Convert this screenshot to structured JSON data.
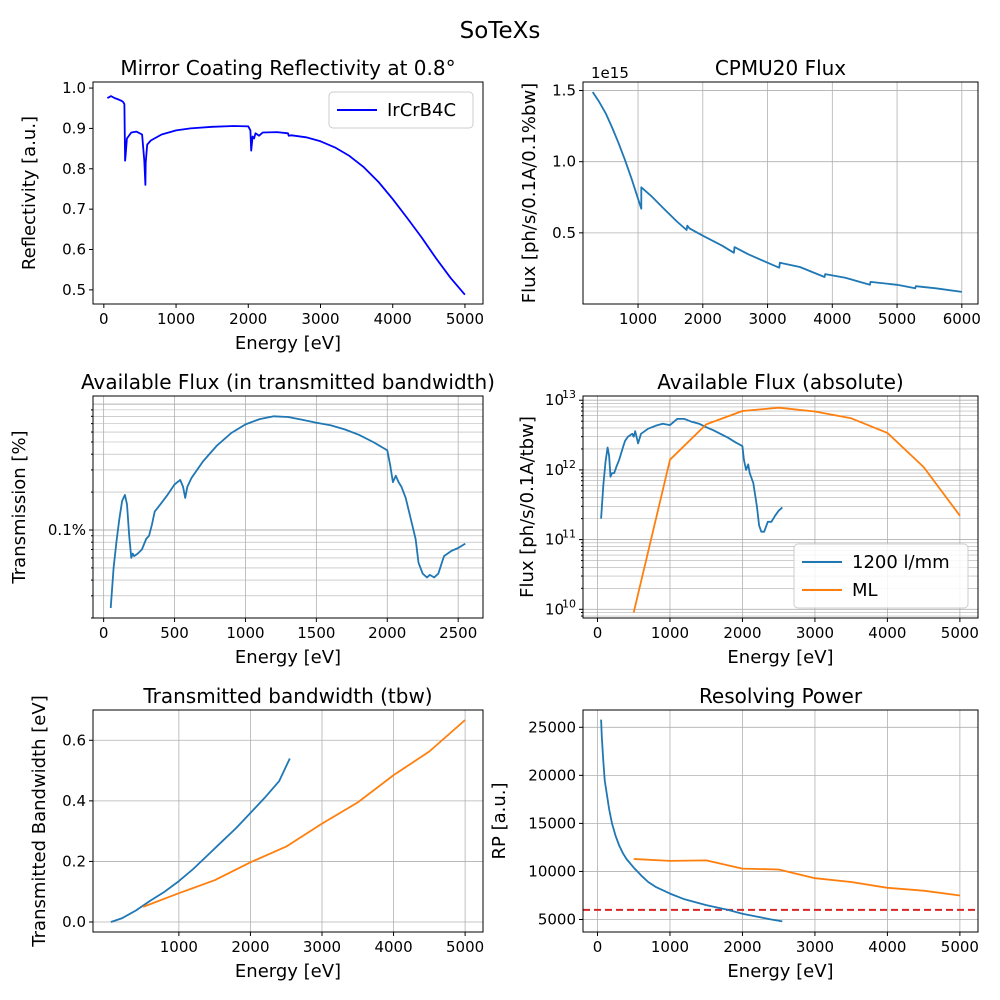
{
  "figure": {
    "suptitle": "SoTeXs"
  },
  "colors": {
    "blue": "#1f77b4",
    "orange": "#ff7f0e",
    "pure_blue": "#0000ff",
    "red": "#d62728",
    "grid": "#b0b0b0"
  },
  "chart_data": [
    {
      "id": "reflectivity",
      "type": "line",
      "title": "Mirror Coating Reflectivity at 0.8°",
      "xlabel": "Energy [eV]",
      "ylabel": "Reflectivity [a.u.]",
      "xlim": [
        -150,
        5250
      ],
      "ylim": [
        0.465,
        1.015
      ],
      "xticks": [
        0,
        1000,
        2000,
        3000,
        4000,
        5000
      ],
      "yticks": [
        0.5,
        0.6,
        0.7,
        0.8,
        0.9,
        1.0
      ],
      "ytick_labels": [
        "0.5",
        "0.6",
        "0.7",
        "0.8",
        "0.9",
        "1.0"
      ],
      "grid": false,
      "legend": {
        "position": "top-right",
        "entries": [
          "IrCrB4C"
        ]
      },
      "series": [
        {
          "name": "IrCrB4C",
          "color": "pure_blue",
          "x": [
            50,
            100,
            150,
            200,
            250,
            270,
            285,
            295,
            300,
            320,
            380,
            450,
            530,
            560,
            575,
            580,
            600,
            650,
            800,
            1000,
            1200,
            1500,
            1800,
            2000,
            2030,
            2040,
            2060,
            2080,
            2100,
            2150,
            2200,
            2400,
            2550,
            2560,
            2600,
            2800,
            3000,
            3200,
            3400,
            3600,
            3800,
            4000,
            4200,
            4400,
            4600,
            4800,
            5000
          ],
          "y": [
            0.975,
            0.98,
            0.975,
            0.972,
            0.968,
            0.965,
            0.96,
            0.82,
            0.83,
            0.875,
            0.89,
            0.892,
            0.885,
            0.82,
            0.76,
            0.815,
            0.86,
            0.87,
            0.885,
            0.895,
            0.9,
            0.904,
            0.906,
            0.905,
            0.895,
            0.845,
            0.88,
            0.875,
            0.888,
            0.882,
            0.89,
            0.891,
            0.888,
            0.882,
            0.883,
            0.878,
            0.868,
            0.853,
            0.832,
            0.804,
            0.768,
            0.725,
            0.678,
            0.63,
            0.578,
            0.53,
            0.488
          ]
        }
      ]
    },
    {
      "id": "cpmu_flux",
      "type": "line",
      "title": "CPMU20 Flux",
      "xlabel": "",
      "ylabel": "Flux [ph/s/0.1A/0.1%bw]",
      "multiplier": "1e15",
      "xlim": [
        150,
        6250
      ],
      "ylim": [
        0.0,
        1.56
      ],
      "xticks": [
        1000,
        2000,
        3000,
        4000,
        5000,
        6000
      ],
      "yticks": [
        0.5,
        1.0,
        1.5
      ],
      "ytick_labels": [
        "0.5",
        "1.0",
        "1.5"
      ],
      "grid": true,
      "series": [
        {
          "name": "",
          "color": "blue",
          "x": [
            300,
            400,
            500,
            600,
            700,
            800,
            900,
            1000,
            1050,
            1050,
            1200,
            1400,
            1600,
            1750,
            1760,
            1800,
            2000,
            2300,
            2480,
            2490,
            2700,
            3000,
            3180,
            3190,
            3500,
            3880,
            3890,
            4200,
            4580,
            4590,
            5000,
            5280,
            5290,
            5600,
            6000
          ],
          "y": [
            1.49,
            1.42,
            1.34,
            1.24,
            1.13,
            1.01,
            0.88,
            0.74,
            0.67,
            0.82,
            0.76,
            0.67,
            0.58,
            0.52,
            0.55,
            0.53,
            0.48,
            0.41,
            0.36,
            0.4,
            0.35,
            0.29,
            0.255,
            0.29,
            0.26,
            0.19,
            0.21,
            0.185,
            0.135,
            0.155,
            0.135,
            0.11,
            0.125,
            0.11,
            0.085
          ]
        }
      ]
    },
    {
      "id": "flux_transmitted",
      "type": "line",
      "title": "Available Flux (in transmitted bandwidth)",
      "xlabel": "Energy [eV]",
      "ylabel": "Transmission [%]",
      "yscale": "log",
      "xlim": [
        -75,
        2675
      ],
      "ylim": [
        0.0002,
        0.0116
      ],
      "xticks": [
        0,
        500,
        1000,
        1500,
        2000,
        2500
      ],
      "yticks": [
        0.001
      ],
      "ytick_labels": [
        "0.1%"
      ],
      "grid": true,
      "series": [
        {
          "name": "",
          "color": "blue",
          "x": [
            50,
            70,
            90,
            110,
            130,
            150,
            165,
            180,
            195,
            205,
            215,
            240,
            270,
            300,
            320,
            340,
            360,
            400,
            450,
            500,
            540,
            560,
            575,
            590,
            620,
            700,
            800,
            900,
            1000,
            1100,
            1200,
            1300,
            1400,
            1500,
            1600,
            1700,
            1800,
            1900,
            2000,
            2020,
            2040,
            2060,
            2080,
            2100,
            2130,
            2160,
            2200,
            2220,
            2250,
            2280,
            2300,
            2330,
            2360,
            2400,
            2450,
            2500,
            2550
          ],
          "y": [
            0.00024,
            0.0005,
            0.0008,
            0.0012,
            0.0017,
            0.0019,
            0.0016,
            0.0009,
            0.0006,
            0.00065,
            0.00062,
            0.00065,
            0.0007,
            0.00085,
            0.0009,
            0.0011,
            0.0014,
            0.0016,
            0.0019,
            0.0023,
            0.0025,
            0.0022,
            0.0018,
            0.0022,
            0.0026,
            0.0035,
            0.0047,
            0.0059,
            0.0069,
            0.0076,
            0.008,
            0.0079,
            0.0075,
            0.0071,
            0.0068,
            0.0063,
            0.0057,
            0.005,
            0.0043,
            0.0033,
            0.0024,
            0.0027,
            0.0024,
            0.0022,
            0.0018,
            0.0013,
            0.00085,
            0.00055,
            0.00045,
            0.00042,
            0.00044,
            0.00042,
            0.00045,
            0.00062,
            0.00068,
            0.00072,
            0.00078
          ]
        }
      ]
    },
    {
      "id": "flux_absolute",
      "type": "line",
      "title": "Available Flux (absolute)",
      "xlabel": "Energy [eV]",
      "ylabel": "Flux [ph/s/0.1A/tbw]",
      "yscale": "log",
      "xlim": [
        -200,
        5250
      ],
      "ylim": [
        7500000000.0,
        11500000000000.0
      ],
      "xticks": [
        0,
        1000,
        2000,
        3000,
        4000,
        5000
      ],
      "yticks": [
        10000000000.0,
        100000000000.0,
        1000000000000.0,
        10000000000000.0
      ],
      "ytick_labels": [
        "10",
        "10",
        "10",
        "10"
      ],
      "ytick_exponents": [
        "10",
        "11",
        "12",
        "13"
      ],
      "grid": true,
      "legend": {
        "position": "bottom-right",
        "entries": [
          "1200 l/mm",
          "ML"
        ]
      },
      "series": [
        {
          "name": "1200 l/mm",
          "color": "blue",
          "x": [
            50,
            80,
            110,
            140,
            160,
            180,
            200,
            230,
            260,
            300,
            350,
            380,
            420,
            480,
            500,
            520,
            560,
            600,
            700,
            800,
            900,
            1000,
            1100,
            1200,
            1300,
            1400,
            1500,
            1600,
            1800,
            1900,
            2000,
            2020,
            2050,
            2080,
            2100,
            2150,
            2200,
            2230,
            2260,
            2300,
            2350,
            2400,
            2450,
            2500,
            2550
          ],
          "y": [
            200000000000.0,
            600000000000.0,
            1300000000000.0,
            2100000000000.0,
            1600000000000.0,
            800000000000.0,
            900000000000.0,
            900000000000.0,
            1100000000000.0,
            1400000000000.0,
            2100000000000.0,
            2600000000000.0,
            3000000000000.0,
            3300000000000.0,
            3000000000000.0,
            3600000000000.0,
            2400000000000.0,
            3300000000000.0,
            3900000000000.0,
            4300000000000.0,
            4600000000000.0,
            4400000000000.0,
            5400000000000.0,
            5400000000000.0,
            4900000000000.0,
            4600000000000.0,
            4100000000000.0,
            3700000000000.0,
            2900000000000.0,
            2500000000000.0,
            2200000000000.0,
            1400000000000.0,
            1000000000000.0,
            1200000000000.0,
            900000000000.0,
            650000000000.0,
            300000000000.0,
            160000000000.0,
            130000000000.0,
            130000000000.0,
            180000000000.0,
            180000000000.0,
            220000000000.0,
            260000000000.0,
            290000000000.0
          ]
        },
        {
          "name": "ML",
          "color": "orange",
          "x": [
            500,
            1000,
            1500,
            2000,
            2500,
            3000,
            3500,
            4000,
            4500,
            5000
          ],
          "y": [
            9000000000.0,
            1400000000000.0,
            4500000000000.0,
            7000000000000.0,
            7800000000000.0,
            6900000000000.0,
            5500000000000.0,
            3400000000000.0,
            1100000000000.0,
            220000000000.0
          ]
        }
      ]
    },
    {
      "id": "tbw",
      "type": "line",
      "title": "Transmitted bandwidth (tbw)",
      "xlabel": "Energy [eV]",
      "ylabel": "Transmitted Bandwidth [eV]",
      "xlim": [
        -200,
        5250
      ],
      "ylim": [
        -0.033,
        0.7
      ],
      "xticks": [
        1000,
        2000,
        3000,
        4000,
        5000
      ],
      "yticks": [
        0.0,
        0.2,
        0.4,
        0.6
      ],
      "ytick_labels": [
        "0.0",
        "0.2",
        "0.4",
        "0.6"
      ],
      "grid": true,
      "series": [
        {
          "name": "",
          "color": "blue",
          "x": [
            50,
            200,
            400,
            600,
            800,
            1000,
            1200,
            1400,
            1600,
            1800,
            2000,
            2200,
            2400,
            2550
          ],
          "y": [
            0.0,
            0.012,
            0.038,
            0.07,
            0.1,
            0.135,
            0.175,
            0.22,
            0.265,
            0.31,
            0.36,
            0.41,
            0.465,
            0.54
          ]
        },
        {
          "name": "",
          "color": "orange",
          "x": [
            500,
            1000,
            1500,
            2000,
            2500,
            3000,
            3500,
            4000,
            4500,
            5000
          ],
          "y": [
            0.05,
            0.095,
            0.138,
            0.197,
            0.249,
            0.325,
            0.395,
            0.485,
            0.563,
            0.667
          ]
        }
      ]
    },
    {
      "id": "rp",
      "type": "line",
      "title": "Resolving Power",
      "xlabel": "Energy [eV]",
      "ylabel": "RP [a.u.]",
      "xlim": [
        -200,
        5250
      ],
      "ylim": [
        3700,
        26800
      ],
      "xticks": [
        0,
        1000,
        2000,
        3000,
        4000,
        5000
      ],
      "yticks": [
        5000,
        10000,
        15000,
        20000,
        25000
      ],
      "ytick_labels": [
        "5000",
        "10000",
        "15000",
        "20000",
        "25000"
      ],
      "grid": true,
      "hline": {
        "y": 6000,
        "color": "red",
        "style": "dashed"
      },
      "series": [
        {
          "name": "",
          "color": "blue",
          "x": [
            50,
            60,
            80,
            100,
            130,
            160,
            200,
            250,
            300,
            350,
            400,
            500,
            600,
            700,
            800,
            1000,
            1200,
            1500,
            1800,
            2000,
            2200,
            2400,
            2550
          ],
          "y": [
            25800,
            24000,
            21500,
            19500,
            18000,
            16500,
            15000,
            13700,
            12700,
            11900,
            11300,
            10400,
            9600,
            8900,
            8400,
            7700,
            7100,
            6500,
            6000,
            5600,
            5300,
            5000,
            4800
          ]
        },
        {
          "name": "",
          "color": "orange",
          "x": [
            500,
            1000,
            1500,
            2000,
            2500,
            3000,
            3500,
            4000,
            4500,
            5000
          ],
          "y": [
            11300,
            11100,
            11150,
            10300,
            10200,
            9300,
            8900,
            8300,
            8000,
            7500
          ]
        }
      ]
    }
  ]
}
